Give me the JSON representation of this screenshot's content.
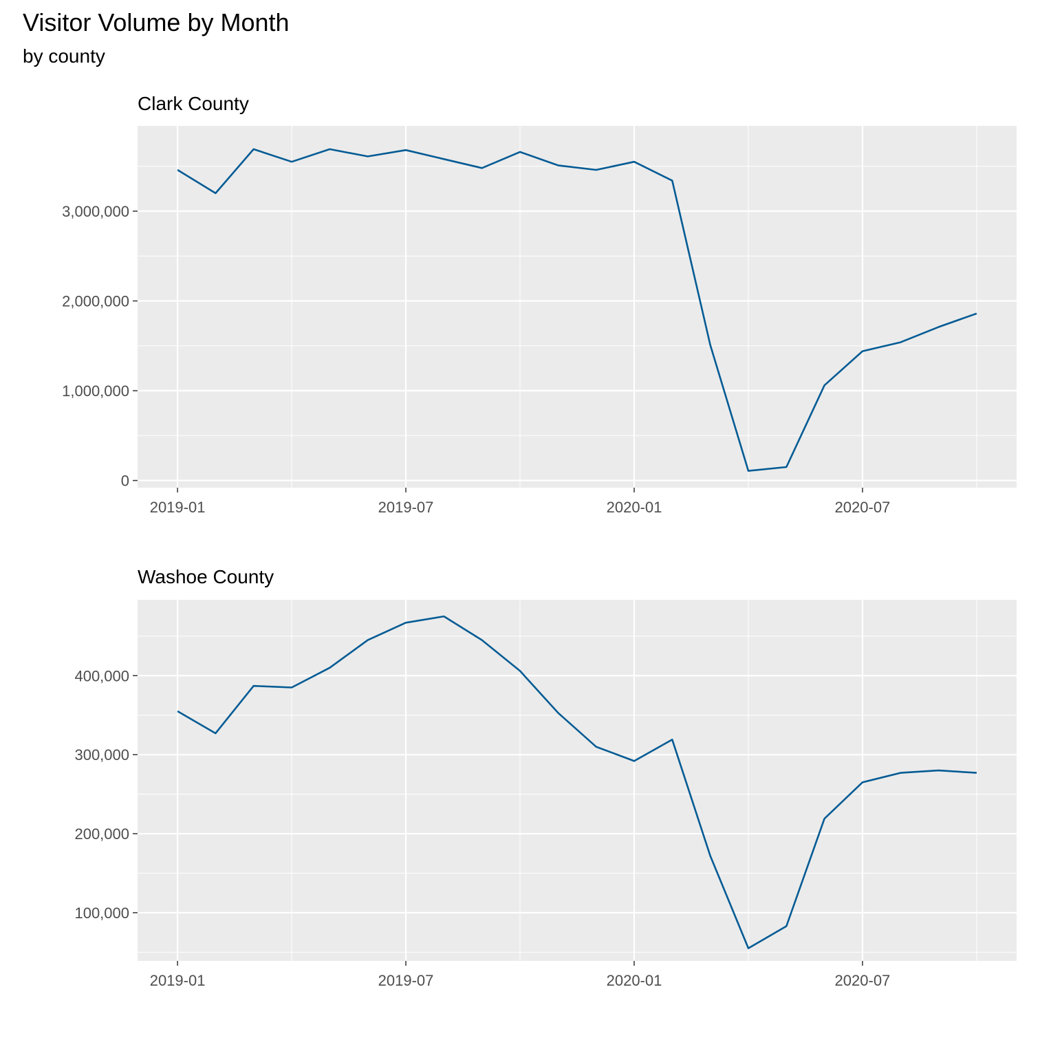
{
  "title": "Visitor Volume by Month",
  "subtitle": "by county",
  "chart_data": [
    {
      "type": "line",
      "title": "Clark County",
      "xlabel": "",
      "ylabel": "",
      "x": [
        "2019-01",
        "2019-02",
        "2019-03",
        "2019-04",
        "2019-05",
        "2019-06",
        "2019-07",
        "2019-08",
        "2019-09",
        "2019-10",
        "2019-11",
        "2019-12",
        "2020-01",
        "2020-02",
        "2020-03",
        "2020-04",
        "2020-05",
        "2020-06",
        "2020-07",
        "2020-08",
        "2020-09",
        "2020-10"
      ],
      "values": [
        3460000,
        3200000,
        3690000,
        3550000,
        3690000,
        3610000,
        3680000,
        3580000,
        3480000,
        3660000,
        3510000,
        3460000,
        3550000,
        3340000,
        1510000,
        107000,
        150000,
        1060000,
        1440000,
        1540000,
        1710000,
        1860000
      ],
      "ylim": [
        -80000,
        3950000
      ],
      "yticks": [
        0,
        1000000,
        2000000,
        3000000
      ],
      "ytick_labels": [
        "0",
        "1,000,000",
        "2,000,000",
        "3,000,000"
      ],
      "xticks": [
        "2019-01",
        "2019-07",
        "2020-01",
        "2020-07"
      ],
      "xtick_labels": [
        "2019-01",
        "2019-07",
        "2020-01",
        "2020-07"
      ],
      "grid": true,
      "line_color": "#035B94",
      "panel_color": "#EBEBEB"
    },
    {
      "type": "line",
      "title": "Washoe County",
      "xlabel": "",
      "ylabel": "",
      "x": [
        "2019-01",
        "2019-02",
        "2019-03",
        "2019-04",
        "2019-05",
        "2019-06",
        "2019-07",
        "2019-08",
        "2019-09",
        "2019-10",
        "2019-11",
        "2019-12",
        "2020-01",
        "2020-02",
        "2020-03",
        "2020-04",
        "2020-05",
        "2020-06",
        "2020-07",
        "2020-08",
        "2020-09",
        "2020-10"
      ],
      "values": [
        355000,
        327000,
        387000,
        385000,
        410000,
        445000,
        467000,
        475000,
        445000,
        406000,
        353000,
        310000,
        292000,
        319000,
        172000,
        55000,
        83000,
        219000,
        265000,
        277000,
        280000,
        277000
      ],
      "ylim": [
        39000,
        496000
      ],
      "yticks": [
        100000,
        200000,
        300000,
        400000
      ],
      "ytick_labels": [
        "100,000",
        "200,000",
        "300,000",
        "400,000"
      ],
      "xticks": [
        "2019-01",
        "2019-07",
        "2020-01",
        "2020-07"
      ],
      "xtick_labels": [
        "2019-01",
        "2019-07",
        "2020-01",
        "2020-07"
      ],
      "grid": true,
      "line_color": "#035B94",
      "panel_color": "#EBEBEB"
    }
  ]
}
